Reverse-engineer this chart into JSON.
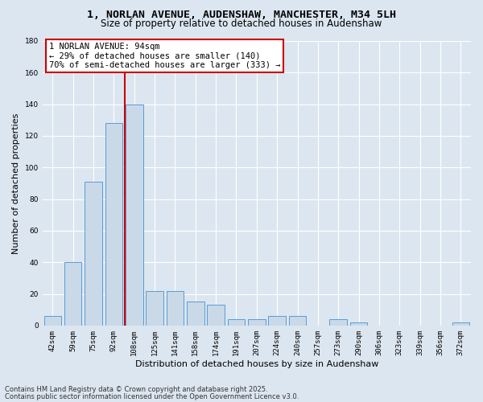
{
  "title_line1": "1, NORLAN AVENUE, AUDENSHAW, MANCHESTER, M34 5LH",
  "title_line2": "Size of property relative to detached houses in Audenshaw",
  "xlabel": "Distribution of detached houses by size in Audenshaw",
  "ylabel": "Number of detached properties",
  "categories": [
    "42sqm",
    "59sqm",
    "75sqm",
    "92sqm",
    "108sqm",
    "125sqm",
    "141sqm",
    "158sqm",
    "174sqm",
    "191sqm",
    "207sqm",
    "224sqm",
    "240sqm",
    "257sqm",
    "273sqm",
    "290sqm",
    "306sqm",
    "323sqm",
    "339sqm",
    "356sqm",
    "372sqm"
  ],
  "values": [
    6,
    40,
    91,
    128,
    140,
    22,
    22,
    15,
    13,
    4,
    4,
    6,
    6,
    0,
    4,
    2,
    0,
    0,
    0,
    0,
    2
  ],
  "bar_color": "#c9d9e8",
  "bar_edge_color": "#5b9bd5",
  "red_line_index": 3.55,
  "annotation_line1": "1 NORLAN AVENUE: 94sqm",
  "annotation_line2": "← 29% of detached houses are smaller (140)",
  "annotation_line3": "70% of semi-detached houses are larger (333) →",
  "annotation_box_color": "#ffffff",
  "annotation_box_edge": "#cc0000",
  "red_line_color": "#cc0000",
  "ylim": [
    0,
    180
  ],
  "yticks": [
    0,
    20,
    40,
    60,
    80,
    100,
    120,
    140,
    160,
    180
  ],
  "background_color": "#dce6f0",
  "grid_color": "#ffffff",
  "footer_line1": "Contains HM Land Registry data © Crown copyright and database right 2025.",
  "footer_line2": "Contains public sector information licensed under the Open Government Licence v3.0.",
  "title_fontsize": 9.5,
  "subtitle_fontsize": 8.5,
  "axis_label_fontsize": 8,
  "tick_fontsize": 6.5,
  "annotation_fontsize": 7.5,
  "footer_fontsize": 6
}
